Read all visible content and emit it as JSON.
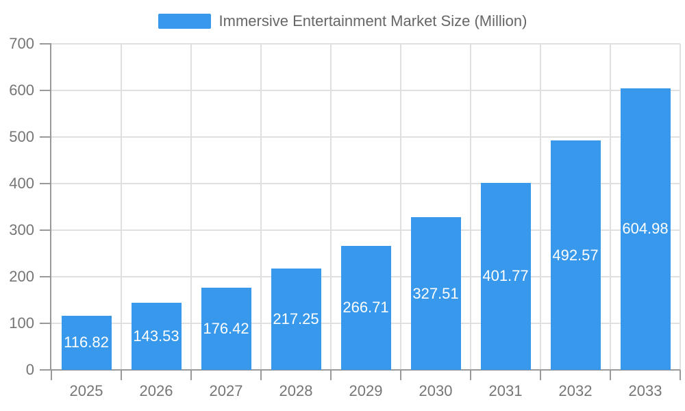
{
  "legend": {
    "label": "Immersive Entertainment Market Size (Million)"
  },
  "colors": {
    "bar": "#3899EC",
    "axis_line": "#999999",
    "grid_line": "#E0E0E0",
    "tick_text": "#757575",
    "legend_text": "#666666",
    "value_label": "#FFFFFF",
    "background": "#FFFFFF"
  },
  "chart_data": {
    "type": "bar",
    "title": "Immersive Entertainment Market Size (Million)",
    "series_name": "Immersive Entertainment Market Size (Million)",
    "categories": [
      "2025",
      "2026",
      "2027",
      "2028",
      "2029",
      "2030",
      "2031",
      "2032",
      "2033"
    ],
    "values": [
      116.82,
      143.53,
      176.42,
      217.25,
      266.71,
      327.51,
      401.77,
      492.57,
      604.98
    ],
    "value_labels": [
      "116.82",
      "143.53",
      "176.42",
      "217.25",
      "266.71",
      "327.51",
      "401.77",
      "492.57",
      "604.98"
    ],
    "xlabel": "",
    "ylabel": "",
    "ylim": [
      0,
      700
    ],
    "yticks": [
      0,
      100,
      200,
      300,
      400,
      500,
      600,
      700
    ],
    "grid": true,
    "legend_position": "top-center",
    "value_label_position": "center-inside-bar"
  }
}
